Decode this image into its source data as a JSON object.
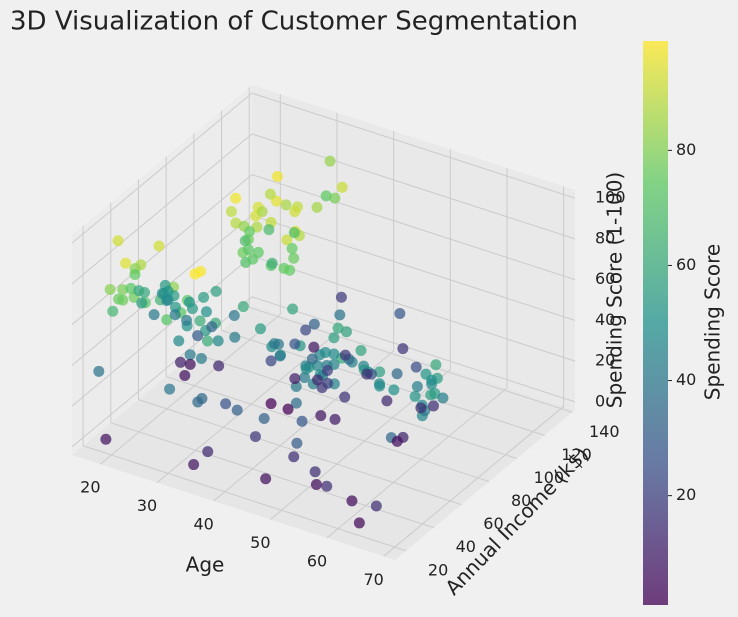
{
  "chart_data": {
    "type": "scatter3d",
    "title": "3D Visualization of Customer Segmentation",
    "xlabel": "Age",
    "ylabel": "Annual Income (k$)",
    "zlabel": "Spending Score (1-100)",
    "colorbar_label": "Spending Score",
    "xlim": [
      15,
      72
    ],
    "ylim": [
      12,
      142
    ],
    "zlim": [
      -4,
      104
    ],
    "xticks": [
      20,
      30,
      40,
      50,
      60,
      70
    ],
    "yticks": [
      20,
      40,
      60,
      80,
      100,
      120,
      140
    ],
    "zticks": [
      0,
      20,
      40,
      60,
      80,
      100
    ],
    "clim": [
      1,
      99
    ],
    "cticks": [
      20,
      40,
      60,
      80
    ],
    "colormap": [
      "#440154",
      "#3b528b",
      "#21918c",
      "#5ec962",
      "#fde725"
    ],
    "grid": true,
    "x": [
      19,
      21,
      20,
      23,
      31,
      22,
      35,
      23,
      64,
      30,
      67,
      35,
      58,
      24,
      37,
      22,
      35,
      20,
      52,
      35,
      35,
      25,
      46,
      31,
      54,
      29,
      45,
      35,
      40,
      23,
      60,
      21,
      53,
      18,
      49,
      21,
      42,
      30,
      36,
      20,
      65,
      24,
      48,
      31,
      49,
      24,
      50,
      27,
      29,
      31,
      49,
      33,
      31,
      59,
      50,
      47,
      51,
      69,
      27,
      53,
      70,
      19,
      67,
      54,
      63,
      18,
      43,
      68,
      19,
      32,
      70,
      47,
      60,
      60,
      59,
      26,
      45,
      40,
      23,
      49,
      57,
      38,
      67,
      46,
      21,
      48,
      55,
      22,
      34,
      50,
      68,
      18,
      48,
      40,
      32,
      24,
      47,
      27,
      48,
      20,
      23,
      49,
      67,
      26,
      49,
      21,
      66,
      54,
      68,
      66,
      65,
      19,
      38,
      19,
      18,
      19,
      63,
      49,
      51,
      50,
      27,
      38,
      40,
      39,
      23,
      31,
      43,
      40,
      59,
      38,
      47,
      39,
      25,
      31,
      20,
      29,
      44,
      32,
      19,
      35,
      57,
      32,
      28,
      32,
      25,
      28,
      48,
      32,
      34,
      34,
      43,
      39,
      44,
      38,
      47,
      27,
      37,
      30,
      34,
      30,
      56,
      29,
      19,
      31,
      50,
      36,
      42,
      33,
      36,
      32,
      40,
      28,
      36,
      36,
      52,
      30,
      58,
      27,
      59,
      35,
      37,
      32,
      46,
      29,
      41,
      30,
      54,
      28,
      41,
      36,
      34,
      32,
      33,
      38,
      47,
      35,
      45,
      32,
      32,
      30
    ],
    "y": [
      15,
      15,
      16,
      16,
      17,
      17,
      18,
      18,
      19,
      19,
      19,
      19,
      20,
      20,
      20,
      20,
      21,
      21,
      23,
      23,
      24,
      24,
      25,
      25,
      28,
      28,
      28,
      28,
      29,
      29,
      30,
      30,
      33,
      33,
      33,
      33,
      34,
      34,
      37,
      37,
      38,
      38,
      39,
      39,
      39,
      39,
      40,
      40,
      40,
      40,
      42,
      42,
      43,
      43,
      43,
      43,
      44,
      44,
      46,
      46,
      46,
      46,
      47,
      47,
      48,
      48,
      48,
      48,
      48,
      48,
      49,
      49,
      50,
      50,
      54,
      54,
      54,
      54,
      54,
      54,
      54,
      54,
      54,
      54,
      54,
      54,
      57,
      57,
      58,
      58,
      59,
      59,
      60,
      60,
      60,
      60,
      60,
      60,
      61,
      61,
      62,
      62,
      62,
      62,
      62,
      62,
      63,
      63,
      63,
      63,
      63,
      63,
      64,
      64,
      65,
      65,
      65,
      65,
      67,
      67,
      67,
      67,
      69,
      69,
      70,
      70,
      71,
      71,
      71,
      71,
      71,
      71,
      72,
      72,
      73,
      73,
      73,
      73,
      74,
      74,
      75,
      75,
      76,
      76,
      77,
      77,
      77,
      77,
      78,
      78,
      78,
      78,
      78,
      78,
      78,
      78,
      78,
      78,
      78,
      78,
      79,
      79,
      81,
      81,
      85,
      85,
      86,
      86,
      87,
      87,
      87,
      87,
      87,
      87,
      88,
      88,
      88,
      88,
      93,
      93,
      97,
      97,
      98,
      98,
      99,
      99,
      101,
      101,
      103,
      103,
      103,
      103,
      113,
      113,
      120,
      120,
      126,
      126,
      137,
      137
    ],
    "z": [
      39,
      81,
      6,
      77,
      40,
      76,
      6,
      94,
      3,
      72,
      14,
      99,
      15,
      77,
      13,
      79,
      35,
      66,
      29,
      98,
      35,
      73,
      5,
      73,
      14,
      82,
      32,
      61,
      31,
      87,
      4,
      73,
      4,
      92,
      14,
      81,
      17,
      73,
      26,
      75,
      35,
      92,
      36,
      61,
      28,
      65,
      55,
      47,
      42,
      42,
      52,
      60,
      54,
      60,
      45,
      41,
      50,
      46,
      51,
      46,
      56,
      55,
      52,
      59,
      51,
      59,
      50,
      48,
      59,
      47,
      55,
      42,
      49,
      56,
      47,
      54,
      53,
      48,
      52,
      42,
      51,
      55,
      41,
      44,
      57,
      46,
      58,
      55,
      60,
      46,
      55,
      41,
      49,
      40,
      42,
      52,
      47,
      50,
      42,
      49,
      41,
      48,
      59,
      55,
      56,
      42,
      50,
      46,
      43,
      48,
      52,
      54,
      42,
      46,
      48,
      50,
      43,
      59,
      43,
      57,
      56,
      40,
      58,
      91,
      29,
      77,
      35,
      95,
      11,
      75,
      9,
      75,
      34,
      71,
      5,
      88,
      7,
      73,
      10,
      72,
      5,
      93,
      40,
      87,
      12,
      97,
      36,
      74,
      22,
      90,
      17,
      88,
      20,
      76,
      16,
      89,
      1,
      78,
      1,
      73,
      35,
      83,
      5,
      93,
      26,
      75,
      20,
      95,
      27,
      63,
      13,
      75,
      10,
      92,
      13,
      86,
      15,
      69,
      14,
      90,
      32,
      86,
      15,
      88,
      39,
      97,
      24,
      68,
      17,
      85,
      23,
      69,
      8,
      91,
      16,
      79,
      28,
      74,
      18,
      83
    ]
  }
}
